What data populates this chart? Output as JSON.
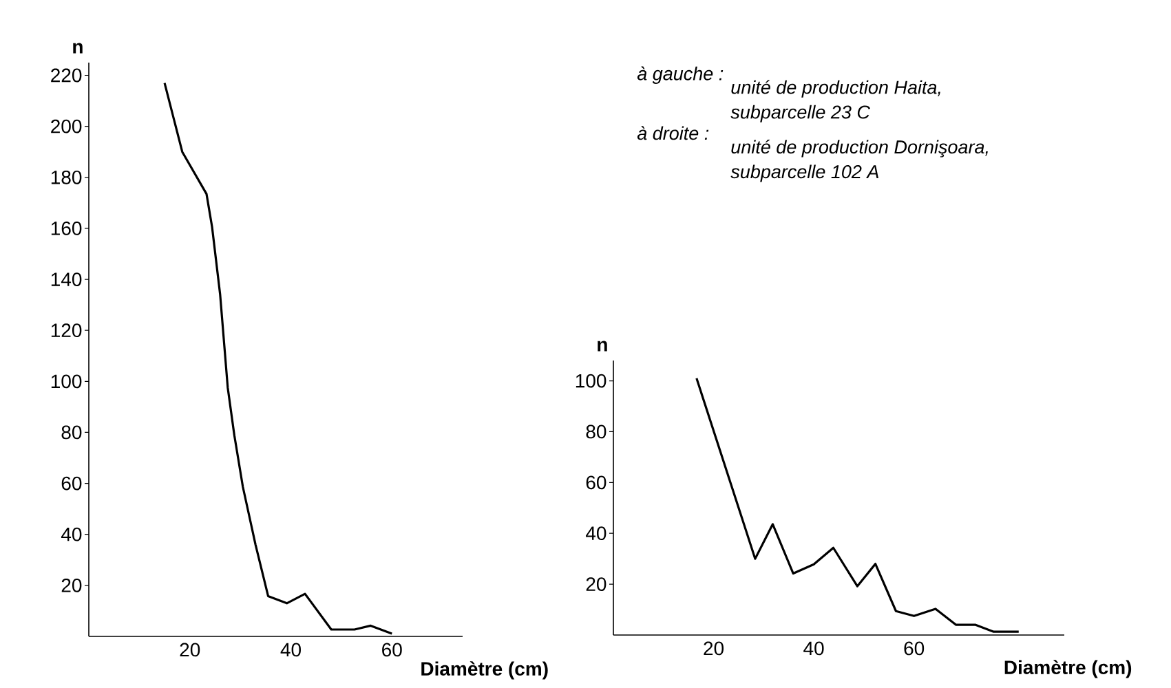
{
  "chart_data": [
    {
      "type": "line",
      "xlabel": "Diamètre (cm)",
      "ylabel": "n",
      "xlim": [
        0,
        74
      ],
      "ylim": [
        0,
        225
      ],
      "xticks": [
        20,
        40,
        60
      ],
      "yticks": [
        20,
        40,
        60,
        80,
        100,
        120,
        140,
        160,
        180,
        200,
        220
      ],
      "x": [
        15,
        18.5,
        23.3,
        24.4,
        26,
        27.5,
        28.8,
        30.5,
        33,
        35.5,
        39.2,
        42.8,
        48,
        52.6,
        55.8,
        60
      ],
      "values": [
        217,
        190,
        173.5,
        160.6,
        134,
        97.6,
        79,
        58.6,
        36,
        15.8,
        13,
        16.7,
        2.7,
        2.7,
        4.2,
        1.1
      ],
      "color": "#000000",
      "annotations": [
        "à gauche :",
        "unité de production Haita, subparcelle 23 C",
        "à droite :",
        "unité de production Dornişoara, subparcelle 102 A"
      ]
    },
    {
      "type": "line",
      "xlabel": "Diamètre (cm)",
      "ylabel": "n",
      "xlim": [
        0,
        90
      ],
      "ylim": [
        0,
        108
      ],
      "xticks": [
        20,
        40,
        60
      ],
      "yticks": [
        20,
        40,
        60,
        80,
        100
      ],
      "x": [
        16.6,
        28.3,
        31.8,
        35.9,
        40,
        43.9,
        48.7,
        52.3,
        56.4,
        60,
        64.3,
        68.4,
        72.3,
        75.9,
        80.9
      ],
      "values": [
        101,
        30,
        43.6,
        24.2,
        27.8,
        34.3,
        19.2,
        28,
        9.4,
        7.5,
        10.3,
        4,
        4,
        1.3,
        1.3
      ],
      "color": "#000000"
    }
  ]
}
